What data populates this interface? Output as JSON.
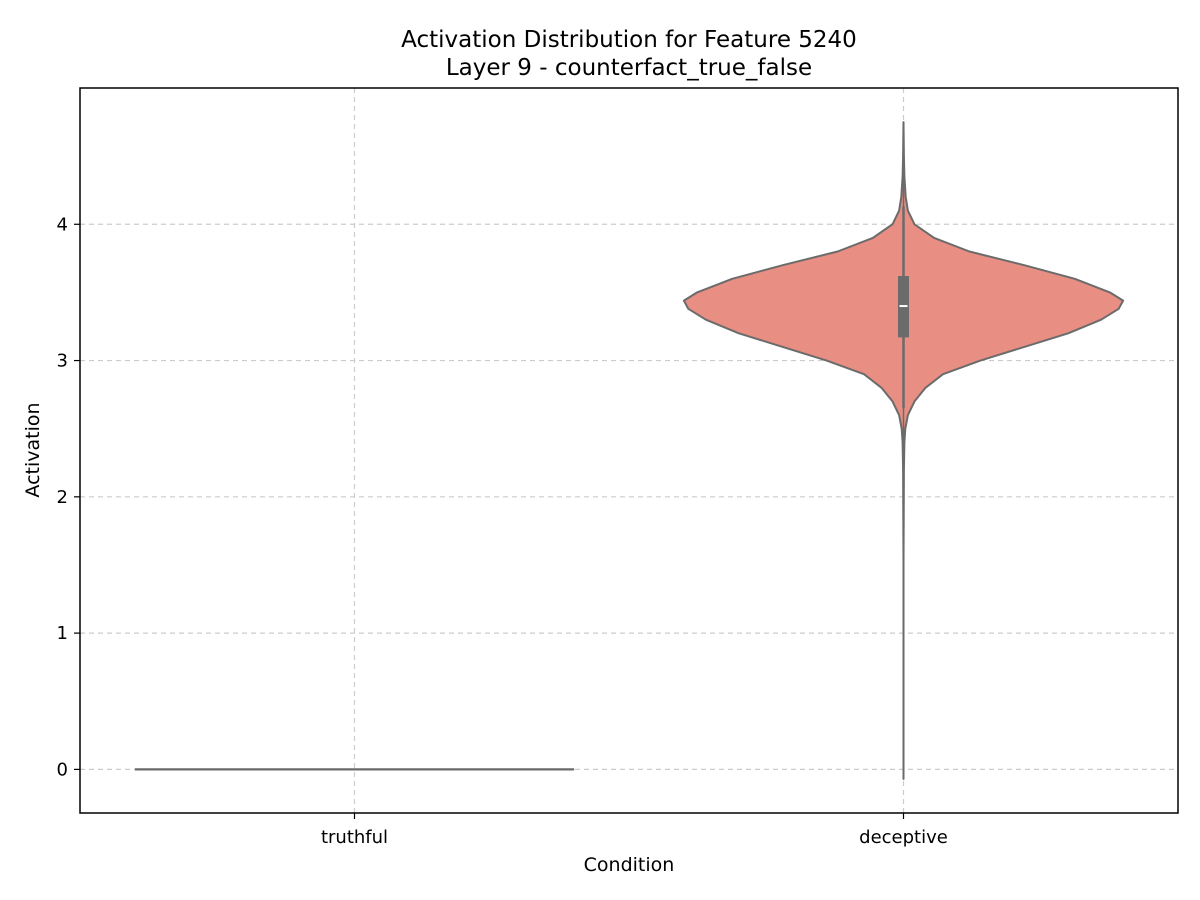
{
  "chart_data": {
    "type": "violin",
    "title": "Activation Distribution for Feature 5240",
    "subtitle": "Layer 9 - counterfact_true_false",
    "xlabel": "Condition",
    "ylabel": "Activation",
    "categories": [
      "truthful",
      "deceptive"
    ],
    "ylim": [
      -0.32,
      5.0
    ],
    "yticks": [
      0,
      1,
      2,
      3,
      4
    ],
    "grid": true,
    "colors": {
      "truthful": "#6a6a6a",
      "deceptive": "#e88e82",
      "outline": "#6b6b6b",
      "box": "#6b6b6b",
      "median": "#ffffff",
      "grid": "#cccccc"
    },
    "violins": [
      {
        "category": "truthful",
        "constant_value": 0,
        "note_flat": true
      },
      {
        "category": "deceptive",
        "min": -0.07,
        "max": 4.75,
        "q1": 3.17,
        "median": 3.4,
        "q3": 3.62,
        "whisker_low": 2.65,
        "whisker_high": 4.13,
        "density": [
          [
            -0.07,
            0.0
          ],
          [
            0.5,
            0.0
          ],
          [
            1.5,
            0.0
          ],
          [
            2.2,
            0.002
          ],
          [
            2.4,
            0.004
          ],
          [
            2.5,
            0.008
          ],
          [
            2.6,
            0.02
          ],
          [
            2.7,
            0.05
          ],
          [
            2.8,
            0.1
          ],
          [
            2.9,
            0.18
          ],
          [
            3.0,
            0.35
          ],
          [
            3.1,
            0.55
          ],
          [
            3.2,
            0.75
          ],
          [
            3.3,
            0.9
          ],
          [
            3.38,
            0.98
          ],
          [
            3.44,
            1.0
          ],
          [
            3.5,
            0.94
          ],
          [
            3.6,
            0.78
          ],
          [
            3.7,
            0.55
          ],
          [
            3.8,
            0.3
          ],
          [
            3.9,
            0.14
          ],
          [
            4.0,
            0.05
          ],
          [
            4.1,
            0.02
          ],
          [
            4.2,
            0.01
          ],
          [
            4.35,
            0.004
          ],
          [
            4.5,
            0.002
          ],
          [
            4.75,
            0.0
          ]
        ]
      }
    ]
  }
}
